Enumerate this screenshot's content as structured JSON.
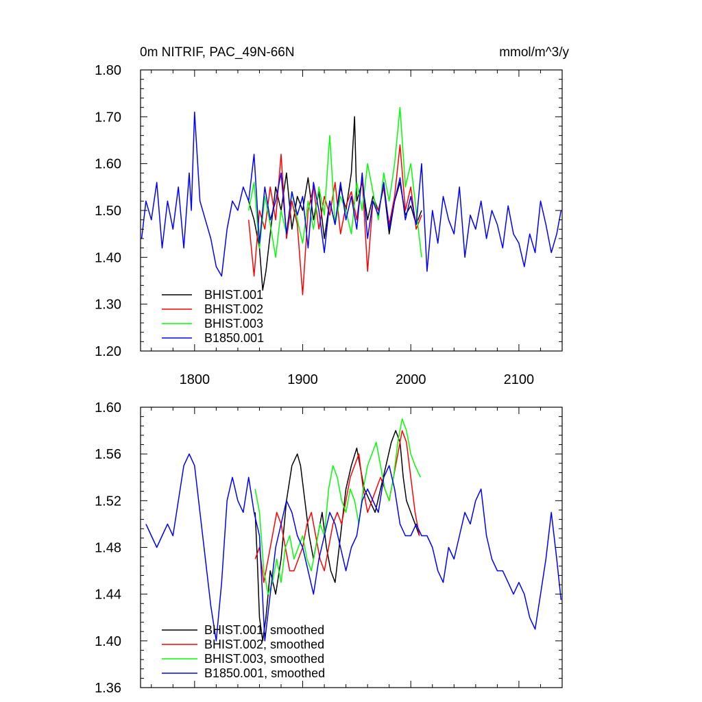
{
  "title_left": "0m NITRIF, PAC_49N-66N",
  "title_right": "mmol/m^3/y",
  "chart_data": [
    {
      "type": "line",
      "xlim": [
        1750,
        2140
      ],
      "ylim": [
        1.2,
        1.8
      ],
      "x_ticks": [
        1800,
        1900,
        2000,
        2100
      ],
      "x_tick_labels": [
        "1800",
        "1900",
        "2000",
        "2100"
      ],
      "y_ticks": [
        1.2,
        1.3,
        1.4,
        1.5,
        1.6,
        1.7,
        1.8
      ],
      "y_tick_labels": [
        "1.20",
        "1.30",
        "1.40",
        "1.50",
        "1.60",
        "1.70",
        "1.80"
      ],
      "legend_position": "bottom-left",
      "series": [
        {
          "name": "BHIST.001",
          "color": "#000000",
          "x": [
            1850,
            1855,
            1860,
            1863,
            1866,
            1870,
            1875,
            1880,
            1885,
            1890,
            1895,
            1900,
            1905,
            1910,
            1915,
            1920,
            1925,
            1930,
            1935,
            1940,
            1945,
            1948,
            1950,
            1955,
            1960,
            1965,
            1970,
            1975,
            1980,
            1985,
            1990,
            1995,
            2000,
            2005,
            2010
          ],
          "y": [
            1.52,
            1.48,
            1.42,
            1.33,
            1.37,
            1.45,
            1.55,
            1.5,
            1.58,
            1.46,
            1.53,
            1.5,
            1.57,
            1.48,
            1.54,
            1.44,
            1.52,
            1.47,
            1.55,
            1.5,
            1.58,
            1.7,
            1.52,
            1.56,
            1.48,
            1.53,
            1.5,
            1.55,
            1.45,
            1.52,
            1.56,
            1.49,
            1.51,
            1.47,
            1.5
          ]
        },
        {
          "name": "BHIST.002",
          "color": "#ff0000",
          "x": [
            1850,
            1855,
            1860,
            1865,
            1870,
            1875,
            1880,
            1885,
            1890,
            1895,
            1900,
            1905,
            1910,
            1915,
            1920,
            1925,
            1930,
            1935,
            1940,
            1945,
            1950,
            1955,
            1960,
            1965,
            1970,
            1975,
            1980,
            1985,
            1990,
            1995,
            2000,
            2005,
            2010
          ],
          "y": [
            1.48,
            1.36,
            1.5,
            1.46,
            1.55,
            1.48,
            1.62,
            1.44,
            1.52,
            1.47,
            1.32,
            1.5,
            1.55,
            1.46,
            1.53,
            1.49,
            1.56,
            1.45,
            1.51,
            1.54,
            1.48,
            1.57,
            1.37,
            1.52,
            1.5,
            1.55,
            1.47,
            1.53,
            1.64,
            1.5,
            1.55,
            1.46,
            1.49
          ]
        },
        {
          "name": "BHIST.003",
          "color": "#00ff00",
          "x": [
            1850,
            1855,
            1860,
            1865,
            1870,
            1875,
            1880,
            1885,
            1890,
            1895,
            1900,
            1905,
            1910,
            1915,
            1920,
            1925,
            1930,
            1935,
            1940,
            1945,
            1950,
            1955,
            1960,
            1965,
            1970,
            1975,
            1980,
            1985,
            1990,
            1995,
            2000,
            2005,
            2010
          ],
          "y": [
            1.5,
            1.56,
            1.42,
            1.53,
            1.47,
            1.4,
            1.5,
            1.45,
            1.54,
            1.48,
            1.43,
            1.52,
            1.46,
            1.55,
            1.49,
            1.66,
            1.47,
            1.53,
            1.5,
            1.45,
            1.56,
            1.5,
            1.6,
            1.54,
            1.48,
            1.58,
            1.52,
            1.6,
            1.72,
            1.55,
            1.6,
            1.5,
            1.4
          ]
        },
        {
          "name": "B1850.001",
          "color": "#0000ff",
          "x": [
            1751,
            1755,
            1760,
            1765,
            1770,
            1775,
            1780,
            1785,
            1790,
            1795,
            1797,
            1800,
            1805,
            1810,
            1815,
            1820,
            1825,
            1830,
            1835,
            1840,
            1845,
            1850,
            1855,
            1860,
            1865,
            1870,
            1875,
            1880,
            1885,
            1890,
            1895,
            1900,
            1905,
            1910,
            1915,
            1920,
            1925,
            1930,
            1935,
            1940,
            1945,
            1950,
            1955,
            1960,
            1965,
            1970,
            1975,
            1980,
            1985,
            1990,
            1995,
            2000,
            2005,
            2010,
            2015,
            2020,
            2025,
            2030,
            2035,
            2040,
            2045,
            2050,
            2055,
            2060,
            2065,
            2070,
            2075,
            2080,
            2085,
            2090,
            2095,
            2100,
            2105,
            2110,
            2115,
            2120,
            2125,
            2130,
            2135,
            2139
          ],
          "y": [
            1.44,
            1.52,
            1.48,
            1.56,
            1.42,
            1.52,
            1.46,
            1.55,
            1.42,
            1.58,
            1.5,
            1.71,
            1.52,
            1.48,
            1.44,
            1.38,
            1.36,
            1.46,
            1.52,
            1.5,
            1.55,
            1.52,
            1.62,
            1.43,
            1.55,
            1.48,
            1.52,
            1.58,
            1.45,
            1.54,
            1.49,
            1.53,
            1.42,
            1.56,
            1.5,
            1.41,
            1.52,
            1.47,
            1.56,
            1.48,
            1.53,
            1.46,
            1.58,
            1.44,
            1.52,
            1.49,
            1.56,
            1.46,
            1.52,
            1.57,
            1.48,
            1.53,
            1.47,
            1.6,
            1.37,
            1.5,
            1.43,
            1.53,
            1.48,
            1.45,
            1.55,
            1.4,
            1.49,
            1.46,
            1.52,
            1.44,
            1.5,
            1.47,
            1.42,
            1.51,
            1.45,
            1.43,
            1.38,
            1.45,
            1.41,
            1.52,
            1.47,
            1.41,
            1.45,
            1.5
          ]
        }
      ]
    },
    {
      "type": "line",
      "xlim": [
        1750,
        2140
      ],
      "ylim": [
        1.36,
        1.6
      ],
      "x_ticks": [
        1800,
        1900,
        2000,
        2100
      ],
      "y_ticks": [
        1.36,
        1.4,
        1.44,
        1.48,
        1.52,
        1.56,
        1.6
      ],
      "y_tick_labels": [
        "1.36",
        "1.40",
        "1.44",
        "1.48",
        "1.52",
        "1.56",
        "1.60"
      ],
      "legend_position": "bottom-left",
      "series": [
        {
          "name": "BHIST.001, smoothed",
          "color": "#000000",
          "x": [
            1856,
            1858,
            1860,
            1863,
            1866,
            1868,
            1870,
            1875,
            1880,
            1885,
            1890,
            1895,
            1898,
            1902,
            1906,
            1910,
            1914,
            1918,
            1922,
            1926,
            1930,
            1935,
            1940,
            1945,
            1950,
            1953,
            1957,
            1962,
            1967,
            1972,
            1977,
            1982,
            1986,
            1990,
            1993,
            1996,
            2000,
            2004,
            2008
          ],
          "y": [
            1.51,
            1.47,
            1.42,
            1.4,
            1.42,
            1.44,
            1.46,
            1.44,
            1.47,
            1.52,
            1.55,
            1.56,
            1.55,
            1.52,
            1.49,
            1.47,
            1.49,
            1.51,
            1.48,
            1.46,
            1.45,
            1.49,
            1.53,
            1.55,
            1.565,
            1.55,
            1.53,
            1.52,
            1.51,
            1.53,
            1.55,
            1.57,
            1.58,
            1.57,
            1.54,
            1.52,
            1.51,
            1.5,
            1.49
          ]
        },
        {
          "name": "BHIST.002, smoothed",
          "color": "#ff0000",
          "x": [
            1856,
            1860,
            1864,
            1868,
            1872,
            1876,
            1880,
            1884,
            1888,
            1892,
            1896,
            1900,
            1904,
            1908,
            1912,
            1916,
            1920,
            1924,
            1928,
            1932,
            1936,
            1940,
            1944,
            1948,
            1952,
            1956,
            1960,
            1964,
            1968,
            1972,
            1976,
            1980,
            1984,
            1988,
            1992,
            1996,
            2000,
            2004,
            2008
          ],
          "y": [
            1.47,
            1.48,
            1.45,
            1.47,
            1.49,
            1.51,
            1.5,
            1.48,
            1.46,
            1.46,
            1.47,
            1.48,
            1.5,
            1.51,
            1.49,
            1.47,
            1.46,
            1.48,
            1.5,
            1.51,
            1.5,
            1.52,
            1.54,
            1.55,
            1.56,
            1.53,
            1.51,
            1.52,
            1.53,
            1.54,
            1.53,
            1.52,
            1.54,
            1.56,
            1.58,
            1.57,
            1.54,
            1.51,
            1.49
          ]
        },
        {
          "name": "BHIST.003, smoothed",
          "color": "#00ff00",
          "x": [
            1856,
            1860,
            1864,
            1868,
            1872,
            1876,
            1880,
            1884,
            1888,
            1892,
            1896,
            1900,
            1904,
            1908,
            1912,
            1916,
            1920,
            1924,
            1928,
            1932,
            1936,
            1940,
            1944,
            1948,
            1952,
            1956,
            1960,
            1964,
            1968,
            1972,
            1976,
            1980,
            1984,
            1988,
            1992,
            1996,
            2000,
            2004,
            2009
          ],
          "y": [
            1.53,
            1.51,
            1.46,
            1.44,
            1.45,
            1.47,
            1.45,
            1.48,
            1.49,
            1.47,
            1.48,
            1.49,
            1.47,
            1.46,
            1.48,
            1.5,
            1.49,
            1.53,
            1.55,
            1.54,
            1.52,
            1.51,
            1.53,
            1.52,
            1.5,
            1.53,
            1.55,
            1.56,
            1.57,
            1.55,
            1.53,
            1.52,
            1.54,
            1.57,
            1.59,
            1.58,
            1.56,
            1.55,
            1.54
          ]
        },
        {
          "name": "B1850.001, smoothed",
          "color": "#0000ff",
          "x": [
            1755,
            1760,
            1765,
            1770,
            1775,
            1780,
            1785,
            1790,
            1795,
            1800,
            1805,
            1810,
            1815,
            1820,
            1825,
            1830,
            1835,
            1840,
            1845,
            1850,
            1855,
            1860,
            1865,
            1870,
            1875,
            1880,
            1885,
            1890,
            1895,
            1900,
            1905,
            1910,
            1915,
            1920,
            1925,
            1930,
            1935,
            1940,
            1945,
            1950,
            1955,
            1960,
            1965,
            1970,
            1975,
            1980,
            1985,
            1990,
            1995,
            2000,
            2005,
            2010,
            2015,
            2020,
            2025,
            2030,
            2035,
            2040,
            2045,
            2050,
            2055,
            2060,
            2065,
            2070,
            2075,
            2080,
            2085,
            2090,
            2095,
            2100,
            2105,
            2110,
            2115,
            2120,
            2125,
            2130,
            2135,
            2139
          ],
          "y": [
            1.5,
            1.49,
            1.48,
            1.49,
            1.5,
            1.49,
            1.52,
            1.55,
            1.56,
            1.55,
            1.51,
            1.47,
            1.43,
            1.4,
            1.45,
            1.52,
            1.54,
            1.52,
            1.51,
            1.54,
            1.51,
            1.49,
            1.4,
            1.44,
            1.48,
            1.5,
            1.52,
            1.51,
            1.49,
            1.48,
            1.46,
            1.44,
            1.47,
            1.49,
            1.51,
            1.5,
            1.48,
            1.46,
            1.48,
            1.49,
            1.52,
            1.53,
            1.52,
            1.51,
            1.54,
            1.55,
            1.53,
            1.5,
            1.49,
            1.49,
            1.5,
            1.49,
            1.49,
            1.48,
            1.46,
            1.45,
            1.48,
            1.47,
            1.49,
            1.51,
            1.5,
            1.52,
            1.53,
            1.49,
            1.47,
            1.46,
            1.46,
            1.45,
            1.44,
            1.45,
            1.44,
            1.42,
            1.41,
            1.44,
            1.47,
            1.51,
            1.47,
            1.435
          ]
        }
      ]
    }
  ]
}
